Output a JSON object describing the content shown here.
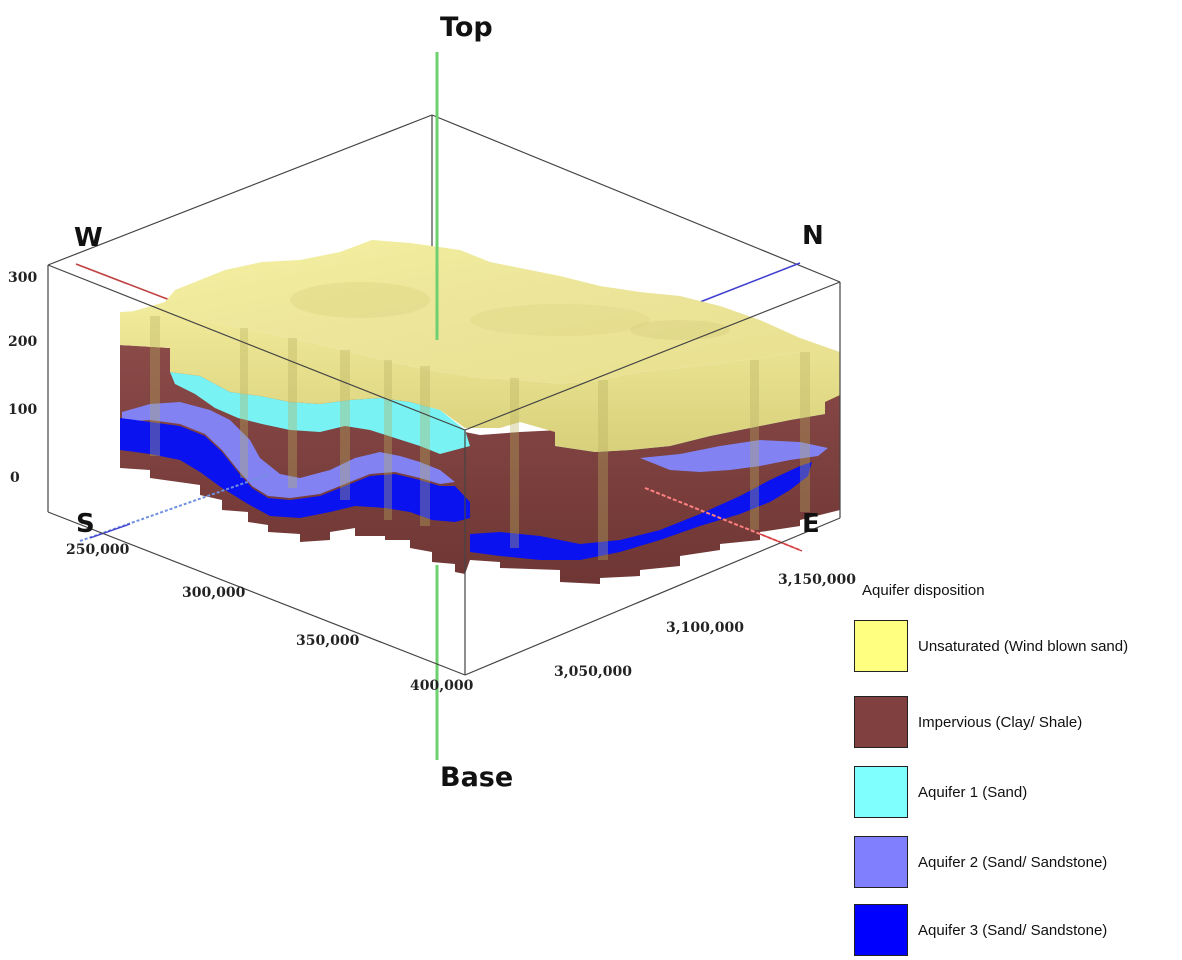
{
  "diagram": {
    "vertical_labels": {
      "top": "Top",
      "base": "Base"
    },
    "directions": {
      "west": "W",
      "north": "N",
      "south": "S",
      "east": "E"
    },
    "elevation_ticks": [
      "300",
      "200",
      "100",
      "0"
    ],
    "easting_ticks": [
      "250,000",
      "300,000",
      "350,000",
      "400,000"
    ],
    "northing_ticks": [
      "3,050,000",
      "3,100,000",
      "3,150,000"
    ]
  },
  "legend": {
    "title": "Aquifer disposition",
    "items": [
      {
        "label": "Unsaturated (Wind blown sand)",
        "color": "#ffff80"
      },
      {
        "label": "Impervious (Clay/ Shale)",
        "color": "#804040"
      },
      {
        "label": "Aquifer 1 (Sand)",
        "color": "#80ffff"
      },
      {
        "label": "Aquifer 2 (Sand/ Sandstone)",
        "color": "#8080ff"
      },
      {
        "label": "Aquifer 3 (Sand/ Sandstone)",
        "color": "#0000ff"
      }
    ]
  }
}
